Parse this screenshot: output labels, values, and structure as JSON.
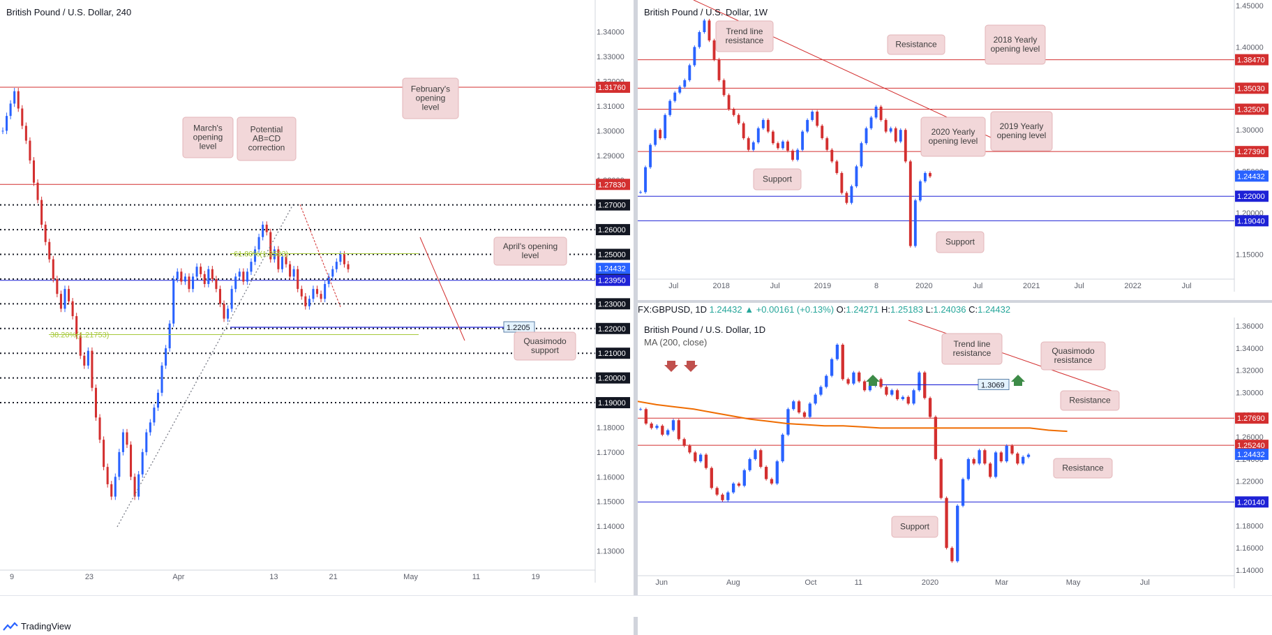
{
  "footer": {
    "brand": "TradingView"
  },
  "panels": [
    {
      "id": "h4",
      "title": "British Pound / U.S. Dollar, 240",
      "chart_data": {
        "type": "candlestick",
        "title": "British Pound / U.S. Dollar, 240",
        "ylim": [
          1.12,
          1.345
        ],
        "y_ticks": [
          "1.34000",
          "1.33000",
          "1.32000",
          "1.31000",
          "1.30000",
          "1.29000",
          "1.28000",
          "1.27000",
          "1.26000",
          "1.25000",
          "1.24000",
          "1.23000",
          "1.22000",
          "1.21000",
          "1.20000",
          "1.19000",
          "1.18000",
          "1.17000",
          "1.16000",
          "1.15000",
          "1.14000",
          "1.13000"
        ],
        "x_ticks": [
          "9",
          "23",
          "Apr",
          "13",
          "21",
          "May",
          "11",
          "19"
        ],
        "x_tick_pos": [
          0.02,
          0.15,
          0.3,
          0.46,
          0.56,
          0.69,
          0.8,
          0.9
        ],
        "levels": [
          {
            "value": 1.3176,
            "label": "1.31760",
            "color": "#d32f2f",
            "style": "solid"
          },
          {
            "value": 1.2783,
            "label": "1.27830",
            "color": "#d32f2f",
            "style": "solid"
          },
          {
            "value": 1.27,
            "label": "1.27000",
            "color": "#131722",
            "style": "dotted"
          },
          {
            "value": 1.26,
            "label": "1.26000",
            "color": "#131722",
            "style": "dotted"
          },
          {
            "value": 1.25,
            "label": "1.25000",
            "color": "#131722",
            "style": "dotted"
          },
          {
            "value": 1.24,
            "label": "1.24000",
            "color": "#131722",
            "style": "dotted"
          },
          {
            "value": 1.2395,
            "label": "1.23950",
            "color": "#1e22d6",
            "style": "solid"
          },
          {
            "value": 1.23,
            "label": "1.23000",
            "color": "#131722",
            "style": "dotted"
          },
          {
            "value": 1.22,
            "label": "1.22000",
            "color": "#131722",
            "style": "dotted"
          },
          {
            "value": 1.21,
            "label": "1.21000",
            "color": "#131722",
            "style": "dotted"
          },
          {
            "value": 1.2,
            "label": "1.20000",
            "color": "#131722",
            "style": "dotted"
          },
          {
            "value": 1.19,
            "label": "1.19000",
            "color": "#131722",
            "style": "dotted"
          }
        ],
        "current_price": {
          "value": 1.24432,
          "label": "1.24432"
        },
        "fib_labels": [
          {
            "text": "61.80%(1.2503)",
            "value": 1.2503
          },
          {
            "text": "38.20%(1.21753)",
            "value": 1.21753
          }
        ],
        "price_marker": {
          "text": "1.2205",
          "value": 1.2205
        },
        "series": [
          {
            "name": "",
            "values": [
              1.3,
              1.306,
              1.311,
              1.316,
              1.309,
              1.302,
              1.296,
              1.288,
              1.279,
              1.272,
              1.262,
              1.255,
              1.248,
              1.24,
              1.234,
              1.228,
              1.236,
              1.231,
              1.225,
              1.217,
              1.209,
              1.205,
              1.211,
              1.196,
              1.184,
              1.175,
              1.164,
              1.157,
              1.152,
              1.16,
              1.17,
              1.178,
              1.173,
              1.16,
              1.152,
              1.161,
              1.17,
              1.178,
              1.182,
              1.188,
              1.194,
              1.205,
              1.212,
              1.222,
              1.24,
              1.243,
              1.239,
              1.241,
              1.236,
              1.241,
              1.245,
              1.242,
              1.238,
              1.244,
              1.24,
              1.236,
              1.23,
              1.224,
              1.228,
              1.236,
              1.241,
              1.243,
              1.239,
              1.243,
              1.247,
              1.252,
              1.257,
              1.262,
              1.259,
              1.248,
              1.252,
              1.244,
              1.249,
              1.246,
              1.241,
              1.244,
              1.236,
              1.233,
              1.229,
              1.232,
              1.236,
              1.234,
              1.232,
              1.238,
              1.241,
              1.244,
              1.247,
              1.25,
              1.246,
              1.244
            ]
          }
        ]
      },
      "annotations": [
        {
          "text": "February's opening level"
        },
        {
          "text": "March's opening level"
        },
        {
          "text": "Potential AB=CD correction"
        },
        {
          "text": "April's opening level"
        },
        {
          "text": "Quasimodo support"
        }
      ]
    },
    {
      "id": "w1",
      "title": "British Pound / U.S. Dollar, 1W",
      "chart_data": {
        "type": "candlestick",
        "title": "British Pound / U.S. Dollar, 1W",
        "ylim": [
          1.12,
          1.45
        ],
        "y_ticks": [
          "1.45000",
          "1.40000",
          "1.35000",
          "1.30000",
          "1.25000",
          "1.20000",
          "1.15000"
        ],
        "x_ticks": [
          "Jul",
          "2018",
          "Jul",
          "2019",
          "8",
          "2020",
          "Jul",
          "2021",
          "Jul",
          "2022",
          "Jul"
        ],
        "x_tick_pos": [
          0.06,
          0.14,
          0.23,
          0.31,
          0.4,
          0.48,
          0.57,
          0.66,
          0.74,
          0.83,
          0.92
        ],
        "levels": [
          {
            "value": 1.3847,
            "label": "1.38470",
            "color": "#d32f2f",
            "style": "solid"
          },
          {
            "value": 1.3503,
            "label": "1.35030",
            "color": "#d32f2f",
            "style": "solid"
          },
          {
            "value": 1.325,
            "label": "1.32500",
            "color": "#d32f2f",
            "style": "solid"
          },
          {
            "value": 1.2739,
            "label": "1.27390",
            "color": "#d32f2f",
            "style": "solid"
          },
          {
            "value": 1.22,
            "label": "1.22000",
            "color": "#1e22d6",
            "style": "solid"
          },
          {
            "value": 1.1904,
            "label": "1.19040",
            "color": "#1e22d6",
            "style": "solid"
          }
        ],
        "current_price": {
          "value": 1.24432,
          "label": "1.24432"
        },
        "series": [
          {
            "name": "",
            "values": [
              1.225,
              1.255,
              1.282,
              1.3,
              1.29,
              1.318,
              1.335,
              1.345,
              1.352,
              1.36,
              1.378,
              1.4,
              1.418,
              1.432,
              1.408,
              1.385,
              1.36,
              1.342,
              1.325,
              1.318,
              1.308,
              1.29,
              1.276,
              1.285,
              1.302,
              1.312,
              1.298,
              1.284,
              1.278,
              1.286,
              1.275,
              1.264,
              1.276,
              1.298,
              1.312,
              1.322,
              1.305,
              1.29,
              1.276,
              1.262,
              1.248,
              1.224,
              1.212,
              1.232,
              1.256,
              1.284,
              1.302,
              1.315,
              1.328,
              1.312,
              1.298,
              1.302,
              1.286,
              1.3,
              1.262,
              1.16,
              1.215,
              1.238,
              1.248,
              1.244
            ]
          }
        ]
      },
      "annotations": [
        {
          "text": "Trend line resistance"
        },
        {
          "text": "Resistance"
        },
        {
          "text": "2018 Yearly opening level"
        },
        {
          "text": "2020 Yearly opening level"
        },
        {
          "text": "2019 Yearly opening level"
        },
        {
          "text": "Support"
        },
        {
          "text": "Support"
        }
      ]
    },
    {
      "id": "d1",
      "title": "British Pound / U.S. Dollar, 1D",
      "subtitle": "MA (200, close)",
      "symbol_line": {
        "symbol": "FX:GBPUSD, 1D",
        "last": "1.24432",
        "change": "+0.00161 (+0.13%)",
        "o_label": "O:",
        "o": "1.24271",
        "h_label": "H:",
        "h": "1.25183",
        "l_label": "L:",
        "l": "1.24036",
        "c_label": "C:",
        "c": "1.24432"
      },
      "chart_data": {
        "type": "candlestick",
        "title": "British Pound / U.S. Dollar, 1D",
        "ylim": [
          1.135,
          1.365
        ],
        "y_ticks": [
          "1.36000",
          "1.34000",
          "1.32000",
          "1.30000",
          "1.28000",
          "1.26000",
          "1.24000",
          "1.22000",
          "1.20000",
          "1.18000",
          "1.16000",
          "1.14000"
        ],
        "x_ticks": [
          "Jun",
          "Aug",
          "Oct",
          "11",
          "2020",
          "Mar",
          "May",
          "Jul"
        ],
        "x_tick_pos": [
          0.04,
          0.16,
          0.29,
          0.37,
          0.49,
          0.61,
          0.73,
          0.85
        ],
        "levels": [
          {
            "value": 1.2769,
            "label": "1.27690",
            "color": "#d32f2f",
            "style": "solid"
          },
          {
            "value": 1.2524,
            "label": "1.25240",
            "color": "#d32f2f",
            "style": "solid"
          },
          {
            "value": 1.2014,
            "label": "1.20140",
            "color": "#1e22d6",
            "style": "solid"
          }
        ],
        "current_price": {
          "value": 1.24432,
          "label": "1.24432"
        },
        "price_marker": {
          "text": "1.3069",
          "value": 1.3069
        },
        "ma200": [
          1.292,
          1.289,
          1.287,
          1.285,
          1.282,
          1.279,
          1.276,
          1.274,
          1.272,
          1.271,
          1.27,
          1.27,
          1.269,
          1.268,
          1.268,
          1.268,
          1.268,
          1.268,
          1.268,
          1.268,
          1.268,
          1.268,
          1.266,
          1.265
        ],
        "series": [
          {
            "name": "",
            "values": [
              1.285,
              1.272,
              1.268,
              1.27,
              1.262,
              1.266,
              1.275,
              1.258,
              1.252,
              1.246,
              1.238,
              1.244,
              1.232,
              1.214,
              1.208,
              1.203,
              1.21,
              1.218,
              1.216,
              1.23,
              1.24,
              1.248,
              1.233,
              1.222,
              1.218,
              1.238,
              1.262,
              1.285,
              1.292,
              1.282,
              1.278,
              1.29,
              1.298,
              1.305,
              1.315,
              1.33,
              1.343,
              1.312,
              1.308,
              1.318,
              1.31,
              1.302,
              1.306,
              1.312,
              1.305,
              1.298,
              1.302,
              1.294,
              1.296,
              1.29,
              1.302,
              1.318,
              1.295,
              1.278,
              1.24,
              1.205,
              1.16,
              1.148,
              1.198,
              1.222,
              1.24,
              1.236,
              1.248,
              1.236,
              1.224,
              1.246,
              1.238,
              1.252,
              1.245,
              1.236,
              1.242,
              1.244
            ]
          }
        ]
      },
      "annotations": [
        {
          "text": "Trend line resistance"
        },
        {
          "text": "Quasimodo resistance"
        },
        {
          "text": "Resistance"
        },
        {
          "text": "Resistance"
        },
        {
          "text": "Support"
        }
      ]
    }
  ]
}
